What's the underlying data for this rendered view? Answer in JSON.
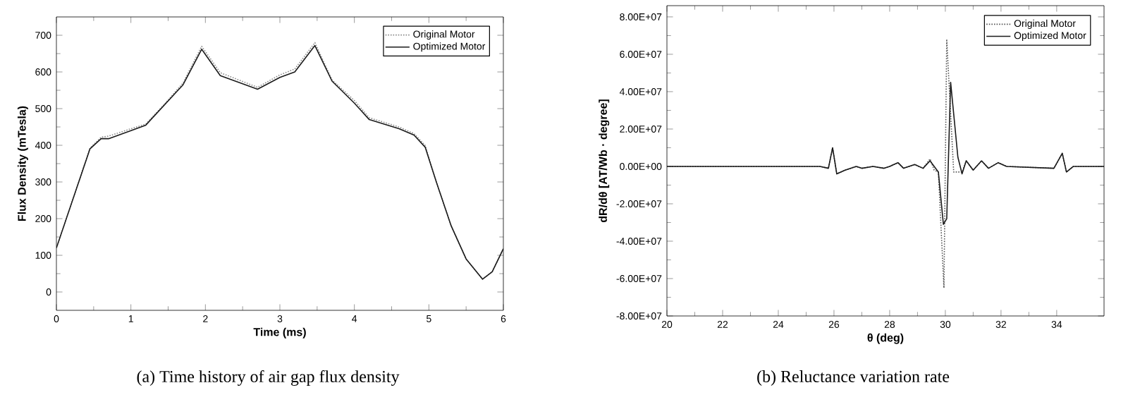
{
  "chart_data": [
    {
      "type": "line",
      "xlabel": "Time (ms)",
      "ylabel": "Flux Density (mTesla)",
      "xlim": [
        0,
        6
      ],
      "ylim": [
        -50,
        750
      ],
      "xticks": [
        0,
        1,
        2,
        3,
        4,
        5,
        6
      ],
      "yticks": [
        0,
        100,
        200,
        300,
        400,
        500,
        600,
        700
      ],
      "legend": "top right",
      "marker": "none",
      "annotations": [
        "(a) Time history of air gap flux density"
      ],
      "series": [
        {
          "name": "Original Motor",
          "color": "#8a8a8a",
          "line_style": "dotted",
          "x": [
            0,
            0.25,
            0.45,
            0.6,
            0.7,
            1.0,
            1.2,
            1.45,
            1.7,
            1.95,
            2.2,
            2.7,
            3.0,
            3.2,
            3.47,
            3.7,
            4.0,
            4.2,
            4.6,
            4.8,
            4.95,
            5.1,
            5.3,
            5.5,
            5.72,
            5.85,
            6.0
          ],
          "values": [
            120,
            270,
            392,
            422,
            425,
            445,
            458,
            512,
            570,
            670,
            598,
            558,
            592,
            608,
            680,
            578,
            522,
            475,
            450,
            432,
            400,
            300,
            180,
            90,
            35,
            55,
            118
          ]
        },
        {
          "name": "Optimized Motor",
          "color": "#1a1a1a",
          "line_style": "solid",
          "x": [
            0,
            0.25,
            0.45,
            0.6,
            0.7,
            1.0,
            1.2,
            1.45,
            1.7,
            1.95,
            2.2,
            2.7,
            3.0,
            3.2,
            3.47,
            3.7,
            4.0,
            4.2,
            4.6,
            4.8,
            4.95,
            5.1,
            5.3,
            5.5,
            5.72,
            5.85,
            6.0
          ],
          "values": [
            120,
            270,
            390,
            418,
            418,
            440,
            455,
            510,
            565,
            662,
            590,
            553,
            585,
            600,
            672,
            575,
            515,
            470,
            445,
            428,
            395,
            300,
            180,
            90,
            35,
            55,
            118
          ]
        }
      ]
    },
    {
      "type": "line",
      "xlabel": "θ (deg)",
      "ylabel": "dR/dθ [AT/Wb · degree]",
      "xlim": [
        20,
        35.7
      ],
      "ylim": [
        -80000000,
        86000000
      ],
      "xticks": [
        20,
        22,
        24,
        26,
        28,
        30,
        32,
        34
      ],
      "yticks": [
        {
          "value": -80000000,
          "label": "-8.00E+07"
        },
        {
          "value": -60000000,
          "label": "-6.00E+07"
        },
        {
          "value": -40000000,
          "label": "-4.00E+07"
        },
        {
          "value": -20000000,
          "label": "-2.00E+07"
        },
        {
          "value": 0,
          "label": "0.00E+00"
        },
        {
          "value": 20000000,
          "label": "2.00E+07"
        },
        {
          "value": 40000000,
          "label": "4.00E+07"
        },
        {
          "value": 60000000,
          "label": "6.00E+07"
        },
        {
          "value": 80000000,
          "label": "8.00E+07"
        }
      ],
      "legend": "top right",
      "marker": "none",
      "annotations": [
        "(b) Reluctance variation rate"
      ],
      "series": [
        {
          "name": "Original Motor",
          "color": "#555555",
          "line_style": "dotted",
          "x": [
            20,
            25.5,
            25.8,
            25.95,
            26.1,
            26.4,
            26.8,
            27.0,
            27.4,
            27.8,
            28.0,
            28.3,
            28.5,
            28.9,
            29.2,
            29.45,
            29.6,
            29.75,
            29.95,
            30.05,
            30.3,
            30.6,
            30.75,
            31.0,
            31.3,
            31.55,
            31.9,
            32.2,
            33.9,
            34.2,
            34.35,
            34.6,
            35.7
          ],
          "values": [
            0,
            0,
            -1000000,
            10000000,
            -4000000,
            -2000000,
            0,
            -1000000,
            0,
            -1000000,
            0,
            2000000,
            -1000000,
            1000000,
            -1000000,
            4000000,
            -2000000,
            -3000000,
            -65000000,
            68000000,
            -3000000,
            -3000000,
            3000000,
            -2000000,
            3000000,
            -1000000,
            2000000,
            0,
            -1000000,
            7000000,
            -3000000,
            0,
            0
          ]
        },
        {
          "name": "Optimized Motor",
          "color": "#1a1a1a",
          "line_style": "solid",
          "x": [
            20,
            25.5,
            25.8,
            25.95,
            26.1,
            26.4,
            26.8,
            27.0,
            27.4,
            27.8,
            28.0,
            28.3,
            28.5,
            28.9,
            29.2,
            29.45,
            29.75,
            29.93,
            30.05,
            30.19,
            30.45,
            30.6,
            30.75,
            31.0,
            31.3,
            31.55,
            31.9,
            32.2,
            33.9,
            34.2,
            34.35,
            34.6,
            35.7
          ],
          "values": [
            0,
            0,
            -1000000,
            10000000,
            -4000000,
            -2000000,
            0,
            -1000000,
            0,
            -1000000,
            0,
            2000000,
            -1000000,
            1000000,
            -1000000,
            3000000,
            -3000000,
            -31000000,
            -28000000,
            45000000,
            5000000,
            -4000000,
            3000000,
            -2000000,
            3000000,
            -1000000,
            2000000,
            0,
            -1000000,
            7000000,
            -3000000,
            0,
            0
          ]
        }
      ]
    }
  ]
}
